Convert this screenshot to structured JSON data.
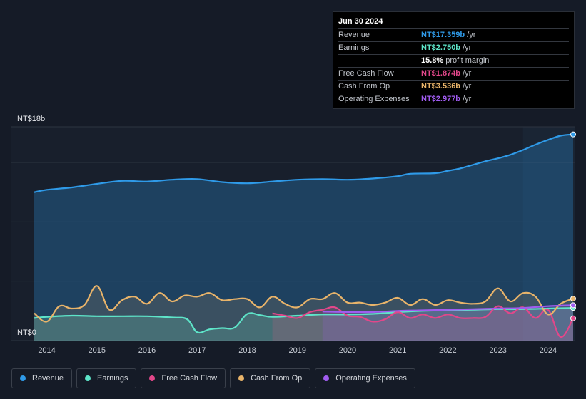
{
  "tooltip": {
    "date": "Jun 30 2024",
    "rows": [
      {
        "label": "Revenue",
        "value": "NT$17.359b",
        "unit": " /yr",
        "color": "#2f9ae8"
      },
      {
        "label": "Earnings",
        "value": "NT$2.750b",
        "unit": " /yr",
        "color": "#5ee5c9"
      },
      {
        "label": "",
        "value": "15.8%",
        "unit": " profit margin",
        "color": "#ffffff"
      },
      {
        "label": "Free Cash Flow",
        "value": "NT$1.874b",
        "unit": " /yr",
        "color": "#e2478a"
      },
      {
        "label": "Cash From Op",
        "value": "NT$3.536b",
        "unit": " /yr",
        "color": "#e9b46a"
      },
      {
        "label": "Operating Expenses",
        "value": "NT$2.977b",
        "unit": " /yr",
        "color": "#a05cf0"
      }
    ]
  },
  "chart_data": {
    "type": "area",
    "y_label_top": "NT$18b",
    "y_label_bottom": "NT$0",
    "ylim": [
      0,
      18
    ],
    "xlim": [
      2013.75,
      2024.5
    ],
    "x_ticks": [
      "2014",
      "2015",
      "2016",
      "2017",
      "2018",
      "2019",
      "2020",
      "2021",
      "2022",
      "2023",
      "2024"
    ],
    "x_tick_values": [
      2014,
      2015,
      2016,
      2017,
      2018,
      2019,
      2020,
      2021,
      2022,
      2023,
      2024
    ],
    "forecast_start": 2023.5,
    "series": [
      {
        "name": "Revenue",
        "color": "#2f9ae8",
        "x": [
          2013.75,
          2014.0,
          2014.5,
          2015.0,
          2015.5,
          2016.0,
          2016.5,
          2017.0,
          2017.5,
          2018.0,
          2018.5,
          2019.0,
          2019.5,
          2020.0,
          2020.5,
          2021.0,
          2021.25,
          2021.75,
          2022.0,
          2022.25,
          2022.5,
          2022.75,
          2023.0,
          2023.25,
          2023.5,
          2023.75,
          2024.0,
          2024.25,
          2024.5
        ],
        "y": [
          12.5,
          12.7,
          12.9,
          13.2,
          13.45,
          13.4,
          13.55,
          13.6,
          13.35,
          13.25,
          13.4,
          13.55,
          13.6,
          13.55,
          13.65,
          13.85,
          14.05,
          14.1,
          14.3,
          14.5,
          14.8,
          15.1,
          15.35,
          15.65,
          16.05,
          16.5,
          16.9,
          17.25,
          17.359
        ]
      },
      {
        "name": "Earnings",
        "color": "#5ee5c9",
        "x": [
          2013.75,
          2014.0,
          2014.5,
          2015.0,
          2015.5,
          2016.0,
          2016.5,
          2016.8,
          2017.0,
          2017.25,
          2017.5,
          2017.75,
          2018.0,
          2018.25,
          2018.5,
          2019.0,
          2019.5,
          2020.0,
          2020.5,
          2021.0,
          2021.5,
          2022.0,
          2022.5,
          2023.0,
          2023.5,
          2024.0,
          2024.5
        ],
        "y": [
          1.9,
          2.0,
          2.1,
          2.05,
          2.05,
          2.05,
          1.95,
          1.8,
          0.7,
          0.95,
          1.05,
          1.1,
          2.25,
          2.15,
          2.0,
          2.1,
          2.2,
          2.2,
          2.25,
          2.4,
          2.5,
          2.55,
          2.6,
          2.65,
          2.65,
          2.7,
          2.75
        ]
      },
      {
        "name": "Free Cash Flow",
        "color": "#e2478a",
        "x": [
          2018.5,
          2018.75,
          2019.0,
          2019.25,
          2019.5,
          2019.75,
          2020.0,
          2020.25,
          2020.5,
          2020.75,
          2021.0,
          2021.25,
          2021.5,
          2021.75,
          2022.0,
          2022.25,
          2022.5,
          2022.75,
          2023.0,
          2023.25,
          2023.5,
          2023.75,
          2024.0,
          2024.25,
          2024.5
        ],
        "y": [
          2.3,
          2.1,
          1.9,
          2.4,
          2.6,
          2.8,
          2.1,
          2.0,
          1.6,
          1.8,
          2.4,
          1.9,
          2.2,
          1.9,
          2.2,
          1.9,
          1.9,
          2.0,
          2.9,
          2.3,
          2.8,
          1.9,
          2.6,
          0.3,
          1.874
        ]
      },
      {
        "name": "Cash From Op",
        "color": "#e9b46a",
        "x": [
          2013.75,
          2014.0,
          2014.25,
          2014.5,
          2014.75,
          2015.0,
          2015.25,
          2015.5,
          2015.75,
          2016.0,
          2016.25,
          2016.5,
          2016.75,
          2017.0,
          2017.25,
          2017.5,
          2017.75,
          2018.0,
          2018.25,
          2018.5,
          2018.75,
          2019.0,
          2019.25,
          2019.5,
          2019.75,
          2020.0,
          2020.25,
          2020.5,
          2020.75,
          2021.0,
          2021.25,
          2021.5,
          2021.75,
          2022.0,
          2022.25,
          2022.5,
          2022.75,
          2023.0,
          2023.25,
          2023.5,
          2023.75,
          2024.0,
          2024.25,
          2024.5
        ],
        "y": [
          2.3,
          1.6,
          2.9,
          2.7,
          3.0,
          4.6,
          2.6,
          3.4,
          3.7,
          3.1,
          4.0,
          3.3,
          3.8,
          3.7,
          4.0,
          3.4,
          3.5,
          3.5,
          2.8,
          3.7,
          3.1,
          2.8,
          3.5,
          3.5,
          4.0,
          3.2,
          3.2,
          3.0,
          3.2,
          3.6,
          3.0,
          3.5,
          3.0,
          3.4,
          3.2,
          3.1,
          3.3,
          4.4,
          3.3,
          4.0,
          3.7,
          2.2,
          3.1,
          3.536
        ]
      },
      {
        "name": "Operating Expenses",
        "color": "#a05cf0",
        "x": [
          2019.5,
          2020.0,
          2020.5,
          2021.0,
          2021.5,
          2022.0,
          2022.5,
          2023.0,
          2023.5,
          2024.0,
          2024.5
        ],
        "y": [
          2.45,
          2.4,
          2.4,
          2.5,
          2.55,
          2.6,
          2.65,
          2.7,
          2.75,
          2.9,
          2.977
        ]
      }
    ]
  },
  "legend": {
    "items": [
      {
        "label": "Revenue",
        "color": "#2f9ae8"
      },
      {
        "label": "Earnings",
        "color": "#5ee5c9"
      },
      {
        "label": "Free Cash Flow",
        "color": "#e2478a"
      },
      {
        "label": "Cash From Op",
        "color": "#e9b46a"
      },
      {
        "label": "Operating Expenses",
        "color": "#a05cf0"
      }
    ]
  }
}
